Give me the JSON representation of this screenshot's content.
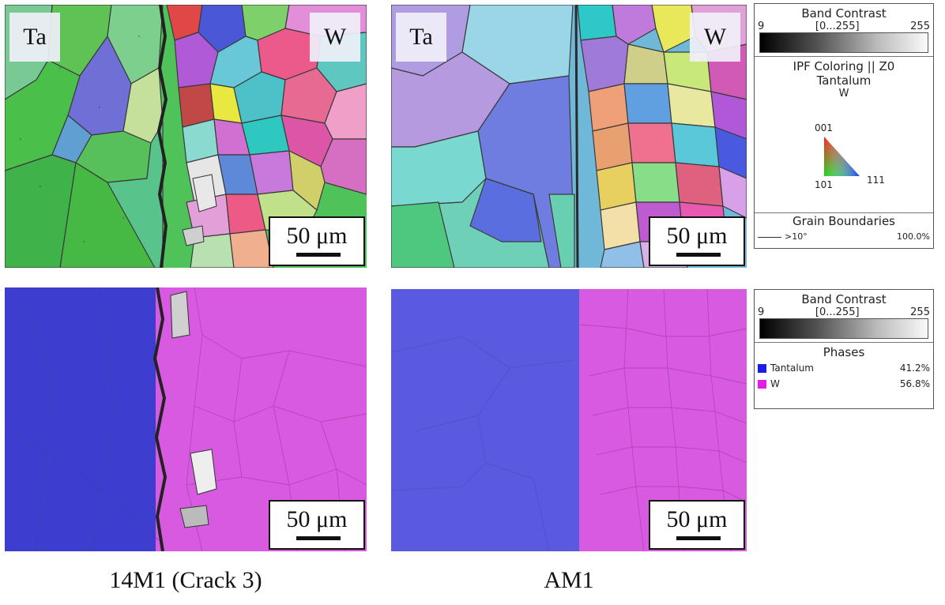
{
  "labels": {
    "left_element": "Ta",
    "right_element": "W"
  },
  "scale_bar": "50 μm",
  "captions": {
    "left": "14M1 (Crack 3)",
    "right": "AM1"
  },
  "legend_top": {
    "band_contrast_title": "Band Contrast",
    "range_min": "9",
    "range_mid": "[0...255]",
    "range_max": "255",
    "ipf_title": "IPF Coloring || Z0",
    "phase_1": "Tantalum",
    "phase_2": "W",
    "triangle_labels": {
      "top": "001",
      "bottom_left": "101",
      "bottom_right": "111"
    },
    "grain_boundaries_title": "Grain Boundaries",
    "boundary_threshold": ">10°",
    "boundary_percent": "100.0%"
  },
  "legend_bottom": {
    "band_contrast_title": "Band Contrast",
    "range_min": "9",
    "range_mid": "[0...255]",
    "range_max": "255",
    "phases_title": "Phases",
    "phases": [
      {
        "name": "Tantalum",
        "percent": "41.2%",
        "color": "#1c1ce6"
      },
      {
        "name": "W",
        "percent": "56.8%",
        "color": "#e61ce6"
      }
    ]
  },
  "colors": {
    "ta_phase": "#3d3dcf",
    "w_phase": "#d85ae0"
  }
}
